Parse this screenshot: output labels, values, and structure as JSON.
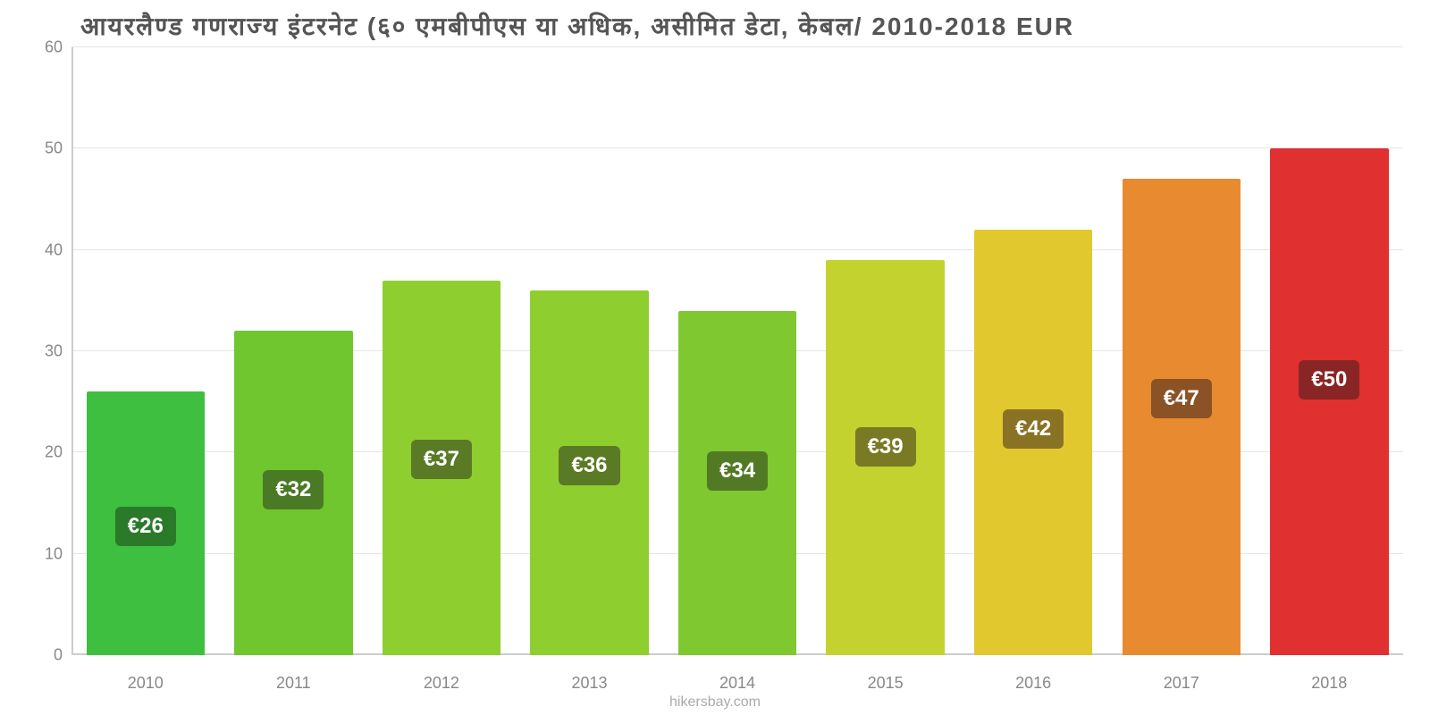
{
  "chart": {
    "type": "bar",
    "title": "आयरलैण्ड   गणराज्य   इंटरनेट   (६०   एमबीपीएस   या   अधिक, असीमित   डेटा, केबल/ 2010-2018 EUR",
    "title_fontsize": 28,
    "title_color": "#555555",
    "background_color": "#ffffff",
    "grid_color": "#e5e5e5",
    "axis_color": "#cccccc",
    "tick_color": "#888888",
    "tick_fontsize": 18,
    "watermark": "hikersbay.com",
    "watermark_color": "#aaaaaa",
    "ylim": [
      0,
      60
    ],
    "ytick_step": 10,
    "yticks": [
      0,
      10,
      20,
      30,
      40,
      50,
      60
    ],
    "categories": [
      "2010",
      "2011",
      "2012",
      "2013",
      "2014",
      "2015",
      "2016",
      "2017",
      "2018"
    ],
    "bar_width_pct": 80,
    "bars": [
      {
        "value": 26,
        "label": "€26",
        "color": "#3fbf3f",
        "label_bg": "#2a7a2a",
        "label_bottom_pct": 18
      },
      {
        "value": 32,
        "label": "€32",
        "color": "#6fc62f",
        "label_bg": "#4a7a25",
        "label_bottom_pct": 24
      },
      {
        "value": 37,
        "label": "€37",
        "color": "#8fce2f",
        "label_bg": "#5a7a25",
        "label_bottom_pct": 29
      },
      {
        "value": 36,
        "label": "€36",
        "color": "#8fce2f",
        "label_bg": "#5a7a25",
        "label_bottom_pct": 28
      },
      {
        "value": 34,
        "label": "€34",
        "color": "#7fc82f",
        "label_bg": "#527a25",
        "label_bottom_pct": 27
      },
      {
        "value": 39,
        "label": "€39",
        "color": "#c4d22f",
        "label_bg": "#7a7a25",
        "label_bottom_pct": 31
      },
      {
        "value": 42,
        "label": "€42",
        "color": "#e2c82f",
        "label_bg": "#8a7225",
        "label_bottom_pct": 34
      },
      {
        "value": 47,
        "label": "€47",
        "color": "#e88a2f",
        "label_bg": "#8a5225",
        "label_bottom_pct": 39
      },
      {
        "value": 50,
        "label": "€50",
        "color": "#e03030",
        "label_bg": "#8a2525",
        "label_bottom_pct": 42
      }
    ],
    "label_fontsize": 24,
    "label_color": "#ffffff"
  }
}
